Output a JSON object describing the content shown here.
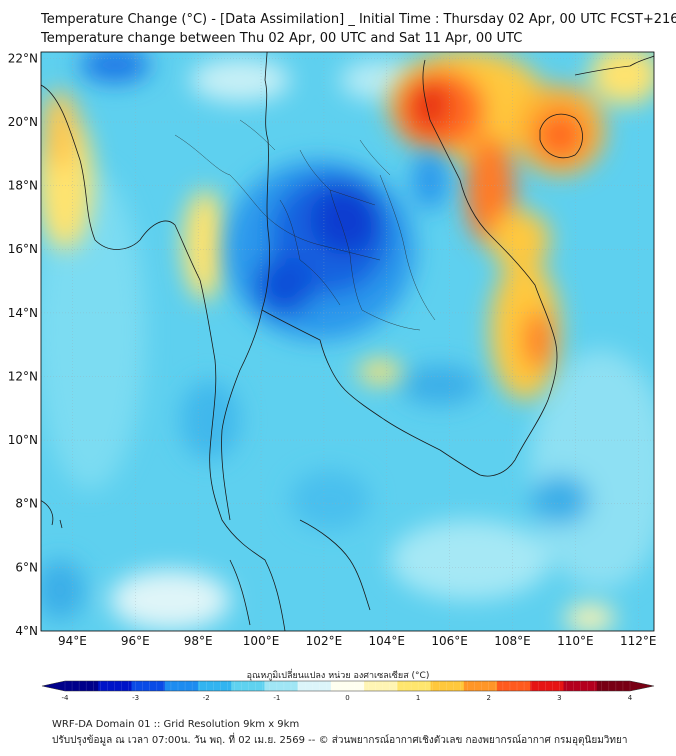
{
  "titles": {
    "line1": "Temperature Change (°C) - [Data Assimilation] _ Initial Time : Thursday 02 Apr, 00 UTC FCST+216",
    "line2": "Temperature change between Thu 02 Apr, 00 UTC and Sat 11 Apr, 00 UTC"
  },
  "map": {
    "lon_ticks": [
      "94°E",
      "96°E",
      "98°E",
      "100°E",
      "102°E",
      "104°E",
      "106°E",
      "108°E",
      "110°E",
      "112°E"
    ],
    "lat_ticks": [
      "22°N",
      "20°N",
      "18°N",
      "16°N",
      "14°N",
      "12°N",
      "10°N",
      "8°N",
      "6°N",
      "4°N"
    ],
    "lon_range": [
      93,
      112.5
    ],
    "lat_range": [
      4,
      22.2
    ],
    "background_color": "#5ed0ef",
    "warm_regions": [
      {
        "name": "north-vietnam",
        "lon": 105.5,
        "lat": 20.5,
        "value": 3.0
      },
      {
        "name": "hainan",
        "lon": 109.5,
        "lat": 19.6,
        "value": 2.5
      },
      {
        "name": "central-vietnam-coast",
        "lon": 108.6,
        "lat": 13.5,
        "value": 2.5
      },
      {
        "name": "myanmar-west-coast",
        "lon": 93.8,
        "lat": 19.8,
        "value": 1.0
      },
      {
        "name": "myanmar-delta",
        "lon": 98.3,
        "lat": 16.2,
        "value": 1.0
      },
      {
        "name": "cambodia-small",
        "lon": 103.5,
        "lat": 12.1,
        "value": 1.0
      }
    ],
    "cold_regions": [
      {
        "name": "northeast-thailand",
        "lon": 102.8,
        "lat": 16.6,
        "value": -3.2
      },
      {
        "name": "central-thailand",
        "lon": 100.7,
        "lat": 15.0,
        "value": -3.0
      },
      {
        "name": "north-myanmar",
        "lon": 95.7,
        "lat": 21.9,
        "value": -2.2
      }
    ]
  },
  "colorbar": {
    "label": "อุณหภูมิเปลี่ยนแปลง หน่วย องศาเซลเซียส (°C)",
    "min": -4,
    "max": 4,
    "ticks": [
      "-4",
      "-3",
      "-2",
      "-1",
      "0",
      "1",
      "2",
      "3",
      "4"
    ],
    "colors": [
      "#00008a",
      "#0014c8",
      "#0a4be6",
      "#1e8cf0",
      "#32b4f0",
      "#5fd2f0",
      "#a0e6f5",
      "#dcf5fa",
      "#fffff0",
      "#fff5b4",
      "#ffe66e",
      "#ffc83c",
      "#ff9628",
      "#ff5a1e",
      "#e61414",
      "#b4001e",
      "#780014"
    ]
  },
  "footer": {
    "line1": "WRF-DA Domain 01 :: Grid Resolution 9km x 9km",
    "line2": "ปรับปรุงข้อมูล ณ เวลา 07:00น. วัน พฤ. ที่ 02 เม.ย. 2569 -- © ส่วนพยากรณ์อากาศเชิงตัวเลข กองพยากรณ์อากาศ กรมอุตุนิยมวิทยา"
  }
}
